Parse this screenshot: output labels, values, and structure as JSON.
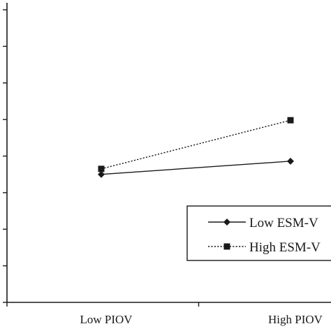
{
  "chart_data": {
    "type": "line",
    "categories": [
      "Low PIOV",
      "High PIOV"
    ],
    "ylim": [
      0,
      8
    ],
    "y_ticks": [
      0,
      1,
      2,
      3,
      4,
      5,
      6,
      7,
      8
    ],
    "grid": false,
    "legend_position": "bottom-right",
    "series": [
      {
        "name": "Low ESM-V",
        "values": [
          3.5,
          3.86
        ],
        "line_style": "solid",
        "marker": "diamond",
        "color": "#1a1a1a"
      },
      {
        "name": "High ESM-V",
        "values": [
          3.65,
          4.98
        ],
        "line_style": "dotted",
        "marker": "square",
        "color": "#1a1a1a"
      }
    ]
  }
}
